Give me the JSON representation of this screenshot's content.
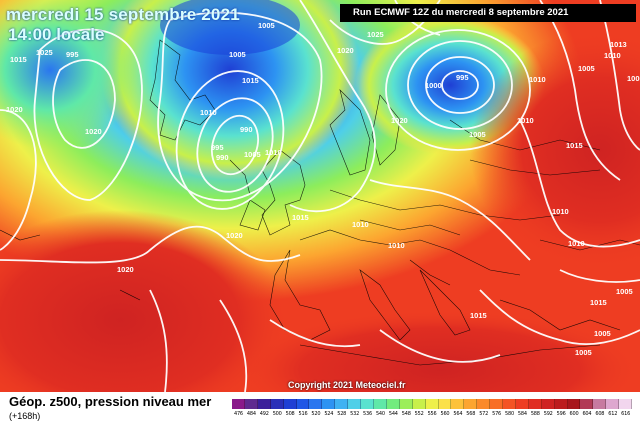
{
  "title": {
    "date": "mercredi 15 septembre 2021",
    "time": "14:00 locale"
  },
  "run_info": "Run ECMWF 12Z du mercredi 8 septembre 2021",
  "copyright": "Copyright 2021 Meteociel.fr",
  "legend": {
    "title": "Géop. z500, pression niveau mer",
    "subtitle": "(+168h)",
    "values": [
      "476",
      "484",
      "492",
      "500",
      "508",
      "516",
      "520",
      "524",
      "528",
      "532",
      "536",
      "540",
      "544",
      "548",
      "552",
      "556",
      "560",
      "564",
      "568",
      "572",
      "576",
      "580",
      "584",
      "588",
      "592",
      "596",
      "600",
      "604",
      "608",
      "612",
      "616"
    ],
    "colors": [
      "#8a1a8a",
      "#5f2a8f",
      "#3b1f9a",
      "#2a2fb8",
      "#1f3fd4",
      "#1f57e6",
      "#2a76ef",
      "#2d93f2",
      "#3fb2f2",
      "#4fcfe8",
      "#5ae2cf",
      "#5fe8a8",
      "#72ec7e",
      "#9cee5a",
      "#c8f04a",
      "#eef04a",
      "#fbe14a",
      "#fdc23a",
      "#fca530",
      "#fb8a2a",
      "#f86e26",
      "#f45424",
      "#ee3d22",
      "#e02e22",
      "#cf2322",
      "#bc1c1e",
      "#a8161c",
      "#b23a56",
      "#c77aa0",
      "#dea7cf",
      "#f2d6ee"
    ]
  },
  "isobars": {
    "labels": [
      {
        "text": "1005"
      },
      {
        "text": "995"
      },
      {
        "text": "1015"
      },
      {
        "text": "1020"
      },
      {
        "text": "1025"
      },
      {
        "text": "1005"
      },
      {
        "text": "1015"
      },
      {
        "text": "1010"
      },
      {
        "text": "990"
      },
      {
        "text": "995"
      },
      {
        "text": "990"
      },
      {
        "text": "1005"
      },
      {
        "text": "1010"
      },
      {
        "text": "1025"
      },
      {
        "text": "1020"
      },
      {
        "text": "995"
      },
      {
        "text": "1000"
      },
      {
        "text": "1005"
      },
      {
        "text": "1010"
      },
      {
        "text": "1010"
      },
      {
        "text": "1010"
      },
      {
        "text": "1013"
      },
      {
        "text": "1015"
      },
      {
        "text": "1005"
      },
      {
        "text": "1005"
      },
      {
        "text": "1020"
      },
      {
        "text": "1020"
      },
      {
        "text": "1015"
      },
      {
        "text": "1010"
      },
      {
        "text": "1010"
      },
      {
        "text": "1020"
      },
      {
        "text": "1010"
      },
      {
        "text": "1015"
      },
      {
        "text": "1005"
      },
      {
        "text": "1005"
      },
      {
        "text": "1020"
      },
      {
        "text": "1010"
      },
      {
        "text": "1005"
      },
      {
        "text": "1015"
      }
    ]
  }
}
